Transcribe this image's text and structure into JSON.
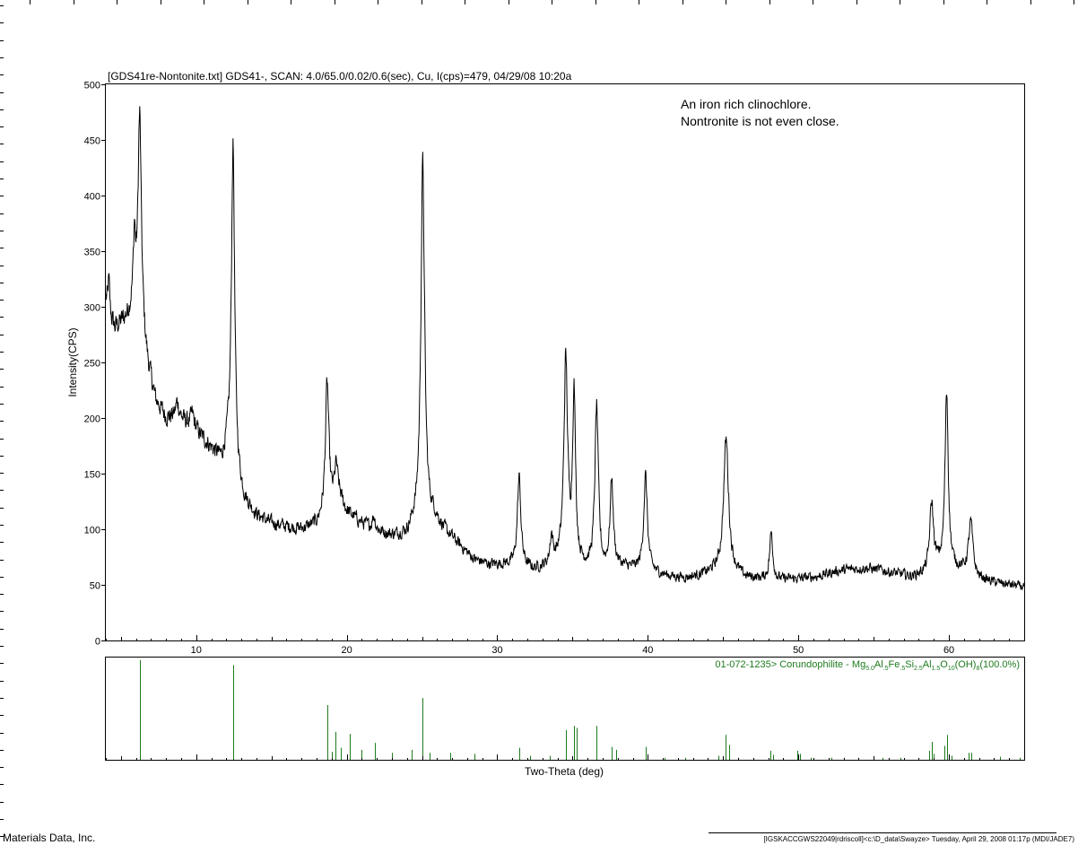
{
  "header": {
    "title": "[GDS41re-Nontonite.txt] GDS41-, SCAN: 4.0/65.0/0.02/0.6(sec), Cu, I(cps)=479, 04/29/08 10:20a"
  },
  "annotation": {
    "line1": "An iron rich clinochlore.",
    "line2": "Nontronite is not even close."
  },
  "footer": {
    "left": "Materials Data, Inc.",
    "right": "[IGSKACCGWS22049|rdriscoll]<c:\\D_data\\Swayze> Tuesday, April 29, 2008 01:17p (MDI/JADE7)"
  },
  "reference": {
    "pdf_label": "01-072-1235> Corundophilite - Mg5.0Al.5Fe.5Si2.5Al1.5O10(OH)8(100.0%)",
    "prefix": "01-072-1235> Corundophilite - Mg",
    "sub1": "5.0",
    "mid1": "Al",
    "sub2": ".5",
    "mid2": "Fe",
    "sub3": ".5",
    "mid3": "Si",
    "sub4": "2.5",
    "mid4": "Al",
    "sub5": "1.5",
    "mid5": "O",
    "sub6": "10",
    "mid6": "(OH)",
    "sub7": "8",
    "suffix": "(100.0%)",
    "line_color": "#1e7b1e"
  },
  "chart_data": {
    "type": "line",
    "title": "[GDS41re-Nontonite.txt] GDS41-, SCAN: 4.0/65.0/0.02/0.6(sec), Cu, I(cps)=479, 04/29/08 10:20a",
    "xlabel": "Two-Theta (deg)",
    "ylabel": "Intensity(CPS)",
    "xlim": [
      4,
      65
    ],
    "ylim": [
      0,
      500
    ],
    "xticks": [
      10,
      20,
      30,
      40,
      50,
      60
    ],
    "yticks": [
      0,
      50,
      100,
      150,
      200,
      250,
      300,
      350,
      400,
      450,
      500
    ],
    "line_color": "#000000",
    "baseline": [
      [
        4.0,
        305
      ],
      [
        4.3,
        290
      ],
      [
        4.6,
        280
      ],
      [
        5.0,
        285
      ],
      [
        5.4,
        290
      ],
      [
        5.8,
        300
      ],
      [
        6.2,
        295
      ],
      [
        6.8,
        245
      ],
      [
        7.3,
        215
      ],
      [
        8.0,
        200
      ],
      [
        9.0,
        198
      ],
      [
        10.0,
        188
      ],
      [
        11.0,
        172
      ],
      [
        11.7,
        160
      ],
      [
        12.1,
        170
      ],
      [
        13.2,
        125
      ],
      [
        14.0,
        112
      ],
      [
        15.0,
        105
      ],
      [
        16.0,
        102
      ],
      [
        17.0,
        100
      ],
      [
        18.0,
        104
      ],
      [
        19.5,
        128
      ],
      [
        20.0,
        115
      ],
      [
        21.0,
        105
      ],
      [
        22.0,
        98
      ],
      [
        23.0,
        94
      ],
      [
        24.0,
        95
      ],
      [
        24.5,
        104
      ],
      [
        25.8,
        110
      ],
      [
        26.5,
        98
      ],
      [
        27.5,
        85
      ],
      [
        28.5,
        72
      ],
      [
        29.5,
        68
      ],
      [
        30.5,
        68
      ],
      [
        31.5,
        66
      ],
      [
        32.5,
        63
      ],
      [
        33.5,
        66
      ],
      [
        34.0,
        70
      ],
      [
        35.5,
        66
      ],
      [
        36.0,
        64
      ],
      [
        37.0,
        62
      ],
      [
        38.0,
        66
      ],
      [
        39.0,
        64
      ],
      [
        40.5,
        60
      ],
      [
        41.5,
        57
      ],
      [
        42.5,
        56
      ],
      [
        43.5,
        58
      ],
      [
        44.5,
        62
      ],
      [
        45.8,
        60
      ],
      [
        46.5,
        56
      ],
      [
        47.5,
        55
      ],
      [
        48.5,
        54
      ],
      [
        49.5,
        55
      ],
      [
        50.5,
        56
      ],
      [
        51.5,
        58
      ],
      [
        52.5,
        62
      ],
      [
        53.5,
        64
      ],
      [
        54.5,
        65
      ],
      [
        55.5,
        63
      ],
      [
        56.5,
        60
      ],
      [
        57.5,
        57
      ],
      [
        58.5,
        60
      ],
      [
        59.2,
        66
      ],
      [
        60.5,
        64
      ],
      [
        61.0,
        62
      ],
      [
        62.0,
        55
      ],
      [
        63.0,
        52
      ],
      [
        64.0,
        50
      ],
      [
        65.0,
        48
      ]
    ],
    "peaks": [
      {
        "x": 4.2,
        "h": 28,
        "w": 0.07
      },
      {
        "x": 5.9,
        "h": 60,
        "w": 0.08
      },
      {
        "x": 6.25,
        "h": 180,
        "w": 0.13
      },
      {
        "x": 8.75,
        "h": 15,
        "w": 0.15
      },
      {
        "x": 9.75,
        "h": 12,
        "w": 0.15
      },
      {
        "x": 12.45,
        "h": 290,
        "w": 0.13
      },
      {
        "x": 18.7,
        "h": 115,
        "w": 0.14
      },
      {
        "x": 19.3,
        "h": 30,
        "w": 0.13
      },
      {
        "x": 21.8,
        "h": 12,
        "w": 0.12
      },
      {
        "x": 25.05,
        "h": 320,
        "w": 0.15
      },
      {
        "x": 31.45,
        "h": 80,
        "w": 0.14
      },
      {
        "x": 33.6,
        "h": 25,
        "w": 0.12
      },
      {
        "x": 34.55,
        "h": 180,
        "w": 0.15
      },
      {
        "x": 35.1,
        "h": 150,
        "w": 0.12
      },
      {
        "x": 36.6,
        "h": 145,
        "w": 0.14
      },
      {
        "x": 37.6,
        "h": 78,
        "w": 0.13
      },
      {
        "x": 39.85,
        "h": 85,
        "w": 0.15
      },
      {
        "x": 45.2,
        "h": 120,
        "w": 0.2
      },
      {
        "x": 48.2,
        "h": 42,
        "w": 0.13
      },
      {
        "x": 58.85,
        "h": 60,
        "w": 0.15
      },
      {
        "x": 59.85,
        "h": 158,
        "w": 0.13
      },
      {
        "x": 61.45,
        "h": 47,
        "w": 0.17
      }
    ],
    "reference_sticks": [
      {
        "x": 6.25,
        "i": 100
      },
      {
        "x": 12.45,
        "i": 95
      },
      {
        "x": 18.7,
        "i": 55
      },
      {
        "x": 19.0,
        "i": 8
      },
      {
        "x": 19.25,
        "i": 28
      },
      {
        "x": 19.6,
        "i": 12
      },
      {
        "x": 20.2,
        "i": 26
      },
      {
        "x": 21.0,
        "i": 10
      },
      {
        "x": 21.9,
        "i": 17
      },
      {
        "x": 23.0,
        "i": 7
      },
      {
        "x": 24.3,
        "i": 10
      },
      {
        "x": 25.05,
        "i": 62
      },
      {
        "x": 25.5,
        "i": 7
      },
      {
        "x": 26.9,
        "i": 7
      },
      {
        "x": 28.5,
        "i": 6
      },
      {
        "x": 30.0,
        "i": 4
      },
      {
        "x": 31.45,
        "i": 12
      },
      {
        "x": 32.2,
        "i": 4
      },
      {
        "x": 33.5,
        "i": 4
      },
      {
        "x": 34.55,
        "i": 30
      },
      {
        "x": 35.1,
        "i": 34
      },
      {
        "x": 35.3,
        "i": 32
      },
      {
        "x": 36.6,
        "i": 34
      },
      {
        "x": 37.6,
        "i": 13
      },
      {
        "x": 37.9,
        "i": 10
      },
      {
        "x": 39.85,
        "i": 13
      },
      {
        "x": 41.1,
        "i": 2
      },
      {
        "x": 42.5,
        "i": 2
      },
      {
        "x": 44.7,
        "i": 4
      },
      {
        "x": 45.15,
        "i": 25
      },
      {
        "x": 45.4,
        "i": 15
      },
      {
        "x": 46.0,
        "i": 2
      },
      {
        "x": 48.15,
        "i": 9
      },
      {
        "x": 48.3,
        "i": 5
      },
      {
        "x": 49.9,
        "i": 9
      },
      {
        "x": 50.1,
        "i": 6
      },
      {
        "x": 50.8,
        "i": 2
      },
      {
        "x": 52.2,
        "i": 2
      },
      {
        "x": 53.0,
        "i": 2
      },
      {
        "x": 54.0,
        "i": 2
      },
      {
        "x": 55.0,
        "i": 3
      },
      {
        "x": 55.6,
        "i": 2
      },
      {
        "x": 56.8,
        "i": 2
      },
      {
        "x": 58.7,
        "i": 9
      },
      {
        "x": 58.85,
        "i": 18
      },
      {
        "x": 59.0,
        "i": 6
      },
      {
        "x": 59.7,
        "i": 14
      },
      {
        "x": 59.85,
        "i": 25
      },
      {
        "x": 60.2,
        "i": 4
      },
      {
        "x": 61.3,
        "i": 7
      },
      {
        "x": 61.5,
        "i": 7
      },
      {
        "x": 63.4,
        "i": 3
      },
      {
        "x": 64.7,
        "i": 2
      }
    ]
  }
}
